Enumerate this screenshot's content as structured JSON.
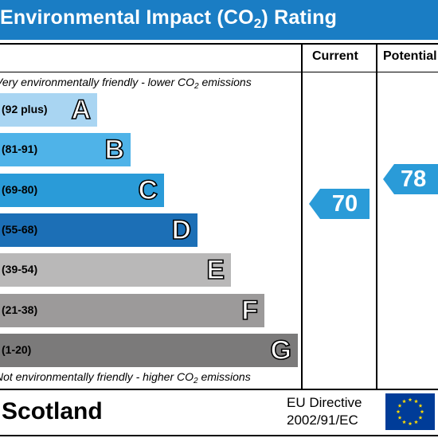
{
  "header": {
    "title_main": "Environmental Impact (CO",
    "title_sub": "2",
    "title_end": ") Rating"
  },
  "columns": {
    "current": "Current",
    "potential": "Potential"
  },
  "top_note": {
    "main": "Very environmentally friendly - lower CO",
    "sub": "2",
    "end": " emissions"
  },
  "bottom_note": {
    "main": "Not environmentally friendly - higher CO",
    "sub": "2",
    "end": " emissions"
  },
  "bands": [
    {
      "range": "(92 plus)",
      "letter": "A",
      "color": "#a9d5f2"
    },
    {
      "range": "(81-91)",
      "letter": "B",
      "color": "#4fb3e8"
    },
    {
      "range": "(69-80)",
      "letter": "C",
      "color": "#2a9bd8"
    },
    {
      "range": "(55-68)",
      "letter": "D",
      "color": "#1c6fb6"
    },
    {
      "range": "(39-54)",
      "letter": "E",
      "color": "#b9b8b8"
    },
    {
      "range": "(21-38)",
      "letter": "F",
      "color": "#9c9a9a"
    },
    {
      "range": "(1-20)",
      "letter": "G",
      "color": "#7b7a7a"
    }
  ],
  "ratings": {
    "current": {
      "value": "70",
      "band": "C",
      "color": "#2a9bd8"
    },
    "potential": {
      "value": "78",
      "band": "C",
      "color": "#2a9bd8"
    }
  },
  "footer": {
    "country": "Scotland",
    "directive_line1": "EU Directive",
    "directive_line2": "2002/91/EC",
    "flag_icon": "eu-flag-icon"
  }
}
